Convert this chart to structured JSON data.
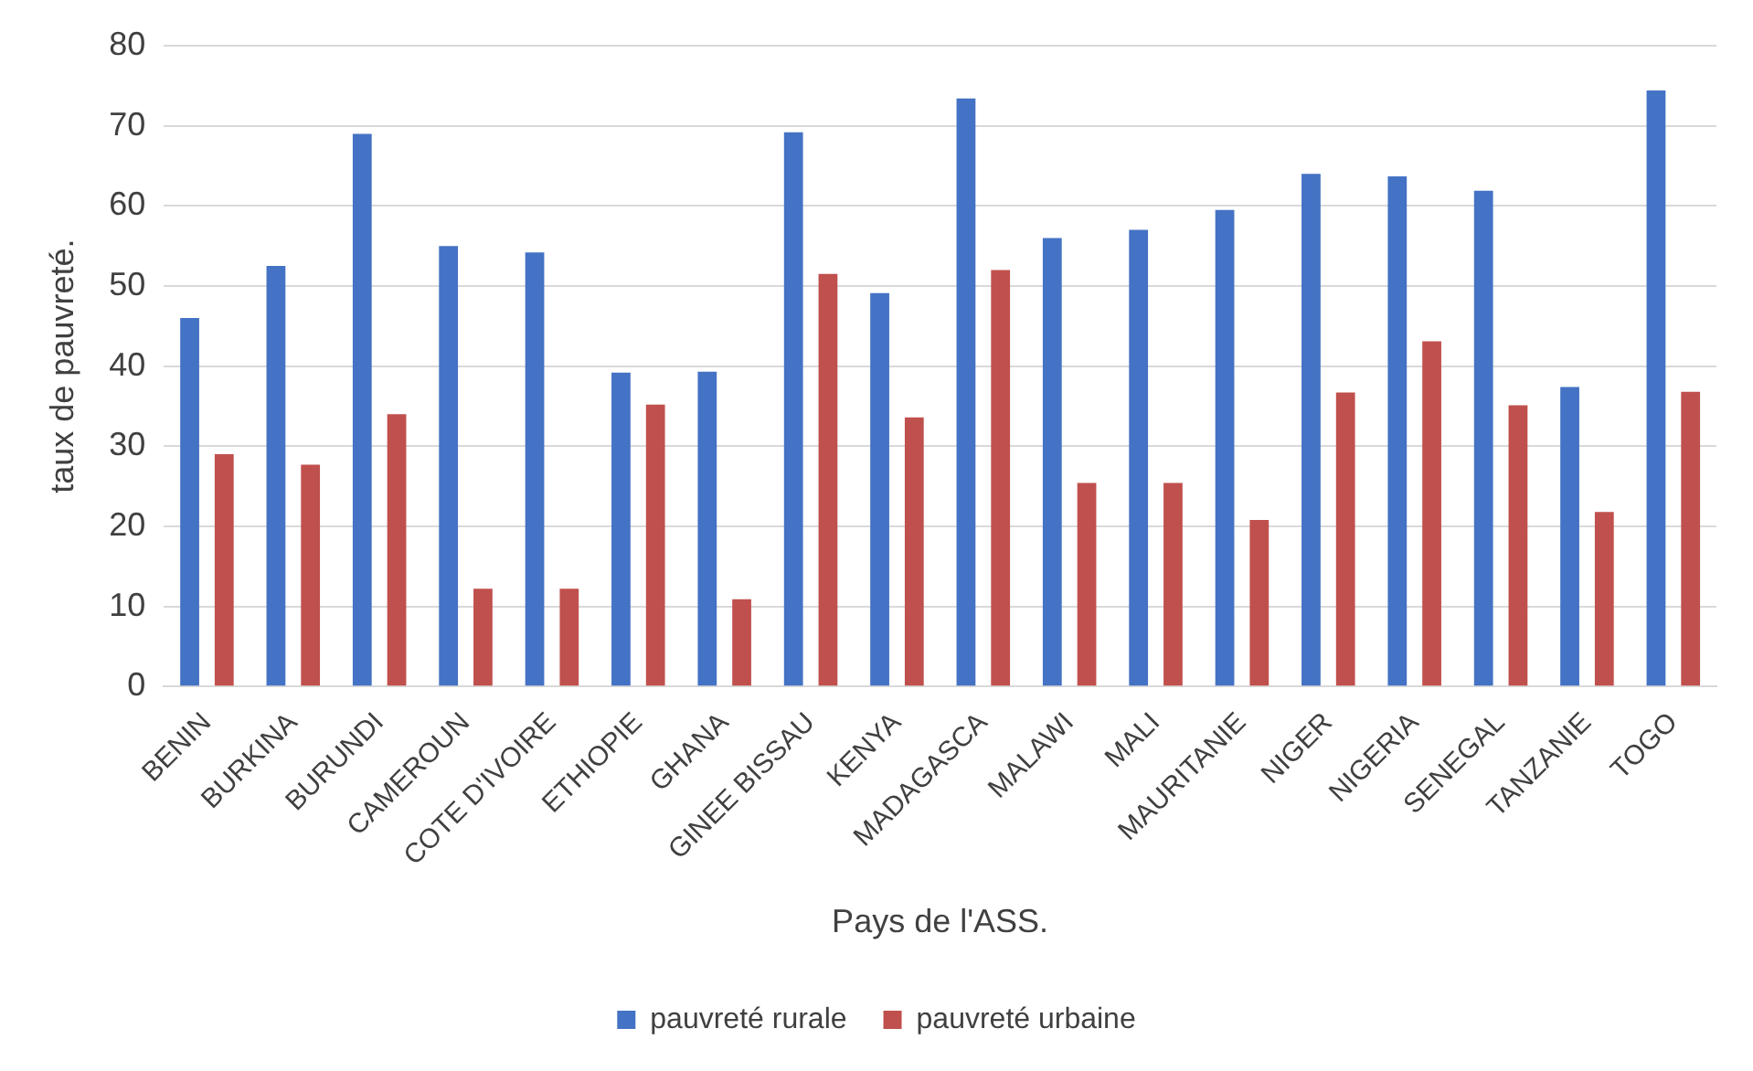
{
  "chart_data": {
    "type": "bar",
    "xlabel": "Pays de l'ASS.",
    "ylabel": "taux de pauvreté.",
    "categories": [
      "BENIN",
      "BURKINA",
      "BURUNDI",
      "CAMEROUN",
      "COTE D'IVOIRE",
      "ETHIOPIE",
      "GHANA",
      "GINEE BISSAU",
      "KENYA",
      "MADAGASCA",
      "MALAWI",
      "MALI",
      "MAURITANIE",
      "NIGER",
      "NIGERIA",
      "SENEGAL",
      "TANZANIE",
      "TOGO"
    ],
    "series": [
      {
        "name": "pauvreté rurale",
        "color": "#4472c4",
        "values": [
          46,
          52.5,
          69,
          55,
          54.2,
          39.2,
          39.3,
          69.2,
          49.1,
          73.4,
          56,
          57,
          59.5,
          64,
          63.7,
          61.9,
          37.4,
          74.4
        ]
      },
      {
        "name": "pauvreté urbaine",
        "color": "#c0504d",
        "values": [
          29,
          27.7,
          34,
          12.2,
          12.2,
          35.2,
          10.9,
          51.5,
          33.6,
          52,
          25.4,
          25.4,
          20.8,
          36.7,
          43.1,
          35.1,
          21.8,
          36.8
        ]
      }
    ],
    "ylim": [
      0,
      80
    ],
    "yticks": [
      0,
      10,
      20,
      30,
      40,
      50,
      60,
      70,
      80
    ],
    "grid": "y",
    "legend": "bottom"
  }
}
